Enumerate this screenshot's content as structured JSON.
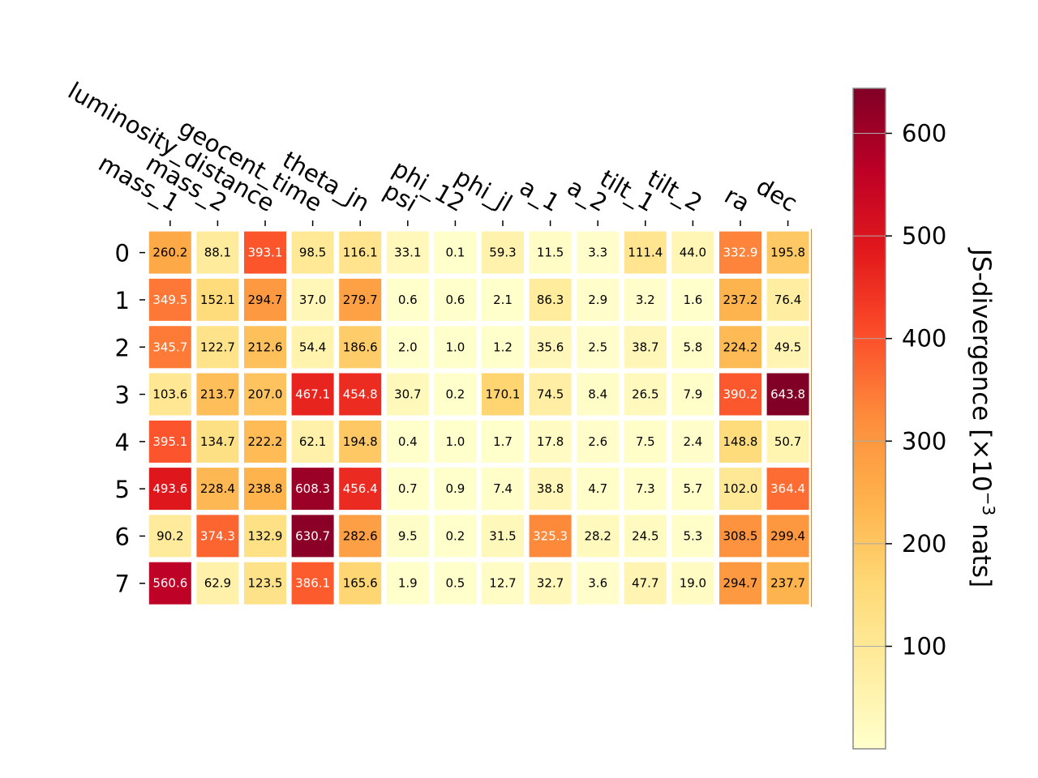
{
  "chart_data": {
    "type": "heatmap",
    "columns": [
      "mass_1",
      "mass_2",
      "luminosity_distance",
      "geocent_time",
      "theta_jn",
      "psi",
      "phi_12",
      "phi_jl",
      "a_1",
      "a_2",
      "tilt_1",
      "tilt_2",
      "ra",
      "dec"
    ],
    "rows": [
      "0",
      "1",
      "2",
      "3",
      "4",
      "5",
      "6",
      "7"
    ],
    "values": [
      [
        260.2,
        88.1,
        393.1,
        98.5,
        116.1,
        33.1,
        0.1,
        59.3,
        11.5,
        3.3,
        111.4,
        44.0,
        332.9,
        195.8
      ],
      [
        349.5,
        152.1,
        294.7,
        37.0,
        279.7,
        0.6,
        0.6,
        2.1,
        86.3,
        2.9,
        3.2,
        1.6,
        237.2,
        76.4
      ],
      [
        345.7,
        122.7,
        212.6,
        54.4,
        186.6,
        2.0,
        1.0,
        1.2,
        35.6,
        2.5,
        38.7,
        5.8,
        224.2,
        49.5
      ],
      [
        103.6,
        213.7,
        207.0,
        467.1,
        454.8,
        30.7,
        0.2,
        170.1,
        74.5,
        8.4,
        26.5,
        7.9,
        390.2,
        643.8
      ],
      [
        395.1,
        134.7,
        222.2,
        62.1,
        194.8,
        0.4,
        1.0,
        1.7,
        17.8,
        2.6,
        7.5,
        2.4,
        148.8,
        50.7
      ],
      [
        493.6,
        228.4,
        238.8,
        608.3,
        456.4,
        0.7,
        0.9,
        7.4,
        38.8,
        4.7,
        7.3,
        5.7,
        102.0,
        364.4
      ],
      [
        90.2,
        374.3,
        132.9,
        630.7,
        282.6,
        9.5,
        0.2,
        31.5,
        325.3,
        28.2,
        24.5,
        5.3,
        308.5,
        299.4
      ],
      [
        560.6,
        62.9,
        123.5,
        386.1,
        165.6,
        1.9,
        0.5,
        12.7,
        32.7,
        3.6,
        47.7,
        19.0,
        294.7,
        237.7
      ]
    ],
    "colormap": "YlOrRd",
    "vmin": 0.1,
    "vmax": 643.8,
    "colorbar": {
      "label_main": "JS-divergence [×10",
      "label_exp": "−3",
      "label_tail": " nats]",
      "ticks": [
        100,
        200,
        300,
        400,
        500,
        600
      ]
    },
    "text_color_threshold": 322
  }
}
